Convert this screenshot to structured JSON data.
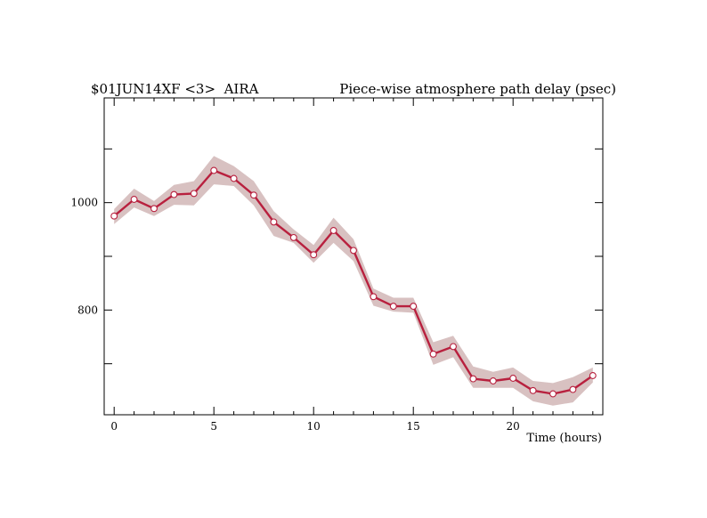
{
  "chart_data": {
    "type": "line",
    "title_left": "$01JUN14XF <3>  AIRA",
    "title_right": "Piece-wise atmosphere path delay (psec)",
    "xlabel": "Time (hours)",
    "ylabel": "",
    "xlim": [
      -0.5,
      24.5
    ],
    "ylim": [
      605,
      1195
    ],
    "x_major_ticks": [
      0,
      5,
      10,
      15,
      20
    ],
    "x_tick_labels": [
      "0",
      "5",
      "10",
      "15",
      "20"
    ],
    "x_minor_ticks": [
      1,
      2,
      3,
      4,
      6,
      7,
      8,
      9,
      11,
      12,
      13,
      14,
      16,
      17,
      18,
      19,
      21,
      22,
      23,
      24
    ],
    "y_ticks": [
      700,
      800,
      900,
      1000,
      1100
    ],
    "y_tick_labels": [
      "",
      "800",
      "",
      "1000",
      ""
    ],
    "grid": false,
    "series": [
      {
        "x": [
          0,
          1,
          2,
          3,
          4,
          5,
          6,
          7,
          8,
          9,
          10,
          11,
          12,
          13,
          14,
          15,
          16,
          17,
          18,
          19,
          20,
          21,
          22,
          23,
          24
        ],
        "values": [
          975,
          1006,
          989,
          1015,
          1017,
          1060,
          1045,
          1014,
          964,
          935,
          903,
          948,
          911,
          825,
          807,
          807,
          718,
          732,
          672,
          668,
          673,
          650,
          644,
          652,
          678
        ],
        "upper": [
          988,
          1026,
          1003,
          1033,
          1040,
          1087,
          1068,
          1040,
          984,
          950,
          921,
          972,
          932,
          840,
          823,
          823,
          740,
          752,
          695,
          685,
          693,
          668,
          664,
          675,
          693
        ],
        "lower": [
          960,
          991,
          975,
          996,
          995,
          1034,
          1031,
          995,
          938,
          925,
          888,
          925,
          891,
          808,
          797,
          795,
          698,
          712,
          655,
          655,
          655,
          630,
          622,
          628,
          665
        ],
        "color": "#b8203e",
        "band_color": "#d8c1c1"
      }
    ]
  }
}
